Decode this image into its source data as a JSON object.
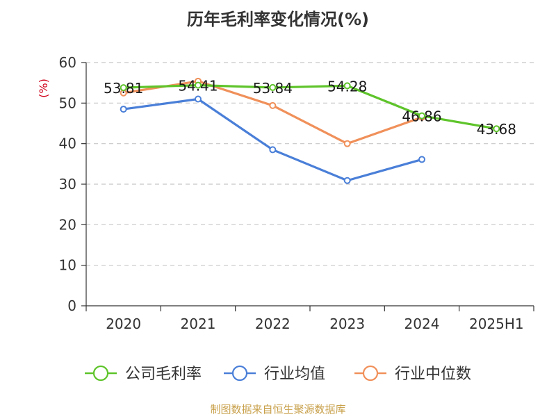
{
  "chart_data": {
    "type": "line",
    "title": "历年毛利率变化情况(%)",
    "ylabel": "(%)",
    "categories": [
      "2020",
      "2021",
      "2022",
      "2023",
      "2024",
      "2025H1"
    ],
    "ylim": [
      0,
      60
    ],
    "yticks": [
      0,
      10,
      20,
      30,
      40,
      50,
      60
    ],
    "grid": true,
    "legend_position": "bottom",
    "series": [
      {
        "name": "公司毛利率",
        "color": "#5ec42a",
        "values": [
          53.81,
          54.41,
          53.84,
          54.28,
          46.86,
          43.68
        ],
        "labels": [
          "53.81",
          "54.41",
          "53.84",
          "54.28",
          "46.86",
          "43.68"
        ]
      },
      {
        "name": "行业均值",
        "color": "#4a7fd8",
        "values": [
          48.5,
          51.0,
          38.5,
          30.9,
          36.1,
          null
        ]
      },
      {
        "name": "行业中位数",
        "color": "#f0905a",
        "values": [
          52.5,
          55.4,
          49.4,
          40.0,
          46.5,
          null
        ]
      }
    ]
  },
  "footer": {
    "source": "制图数据来自恒生聚源数据库"
  }
}
